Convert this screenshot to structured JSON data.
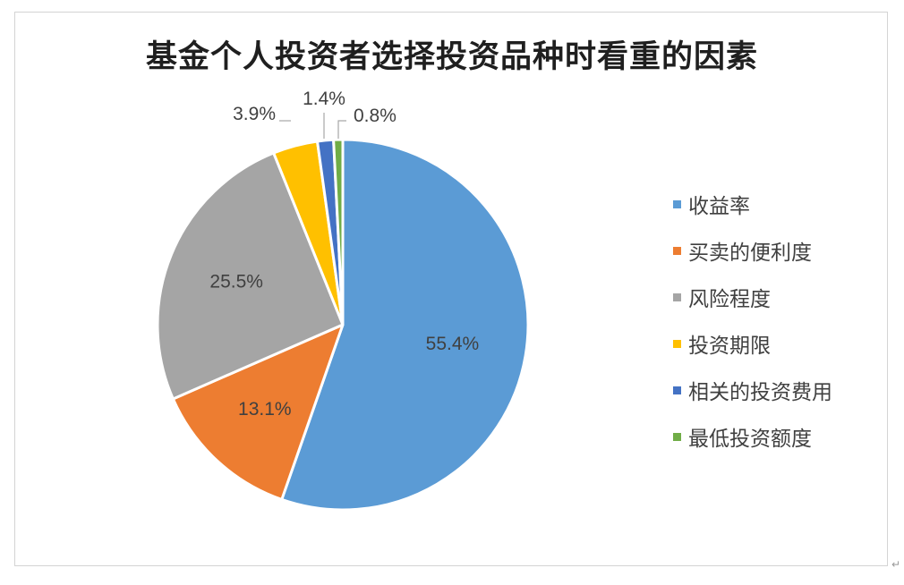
{
  "chart_data": {
    "type": "pie",
    "title": "基金个人投资者选择投资品种时看重的因素",
    "categories": [
      "收益率",
      "买卖的便利度",
      "风险程度",
      "投资期限",
      "相关的投资费用",
      "最低投资额度"
    ],
    "values": [
      55.4,
      13.1,
      25.5,
      3.9,
      1.4,
      0.8
    ],
    "data_labels": [
      "55.4%",
      "13.1%",
      "25.5%",
      "3.9%",
      "1.4%",
      "0.8%"
    ],
    "colors": [
      "#5B9BD5",
      "#ED7D31",
      "#A5A5A5",
      "#FFC000",
      "#4472C4",
      "#70AD47"
    ],
    "legend_position": "right"
  },
  "paragraph_mark": "↵"
}
